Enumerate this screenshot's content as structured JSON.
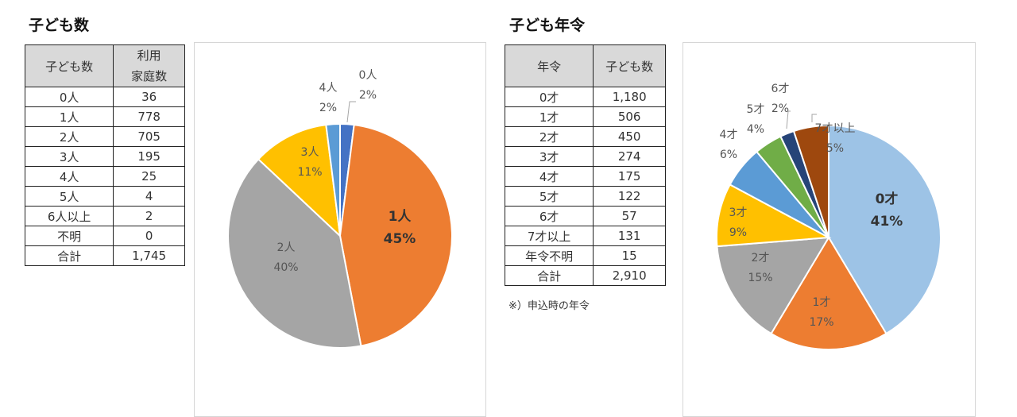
{
  "left": {
    "title": "子ども数",
    "table": {
      "headers": [
        "子ども数",
        "利用",
        "家庭数"
      ],
      "rows": [
        [
          "0人",
          "36"
        ],
        [
          "1人",
          "778"
        ],
        [
          "2人",
          "705"
        ],
        [
          "3人",
          "195"
        ],
        [
          "4人",
          "25"
        ],
        [
          "5人",
          "4"
        ],
        [
          "6人以上",
          "2"
        ],
        [
          "不明",
          "0"
        ],
        [
          "合計",
          "1,745"
        ]
      ]
    }
  },
  "right": {
    "title": "子ども年令",
    "table": {
      "headers": [
        "年令",
        "子ども数"
      ],
      "rows": [
        [
          "0才",
          "1,180"
        ],
        [
          "1才",
          "506"
        ],
        [
          "2才",
          "450"
        ],
        [
          "3才",
          "274"
        ],
        [
          "4才",
          "175"
        ],
        [
          "5才",
          "122"
        ],
        [
          "6才",
          "57"
        ],
        [
          "7才以上",
          "131"
        ],
        [
          "年令不明",
          "15"
        ],
        [
          "合計",
          "2,910"
        ]
      ]
    },
    "note": "※）申込時の年令"
  },
  "chart_data": [
    {
      "type": "pie",
      "slices": [
        {
          "label": "0人",
          "value": 2,
          "color": "#4472c4",
          "bold": false
        },
        {
          "label": "1人",
          "value": 45,
          "color": "#ed7d31",
          "bold": true
        },
        {
          "label": "2人",
          "value": 40,
          "color": "#a5a5a5",
          "bold": false
        },
        {
          "label": "3人",
          "value": 11,
          "color": "#ffc000",
          "bold": false
        },
        {
          "label": "4人",
          "value": 2,
          "color": "#5b9bd5",
          "bold": false
        }
      ]
    },
    {
      "type": "pie",
      "slices": [
        {
          "label": "0才",
          "value": 41,
          "color": "#9dc3e6",
          "bold": true
        },
        {
          "label": "1才",
          "value": 17,
          "color": "#ed7d31",
          "bold": false
        },
        {
          "label": "2才",
          "value": 15,
          "color": "#a5a5a5",
          "bold": false
        },
        {
          "label": "3才",
          "value": 9,
          "color": "#ffc000",
          "bold": false
        },
        {
          "label": "4才",
          "value": 6,
          "color": "#5b9bd5",
          "bold": false
        },
        {
          "label": "5才",
          "value": 4,
          "color": "#70ad47",
          "bold": false
        },
        {
          "label": "6才",
          "value": 2,
          "color": "#264478",
          "bold": false
        },
        {
          "label": "7才以上",
          "value": 5,
          "color": "#9e480e",
          "bold": false
        }
      ]
    }
  ]
}
